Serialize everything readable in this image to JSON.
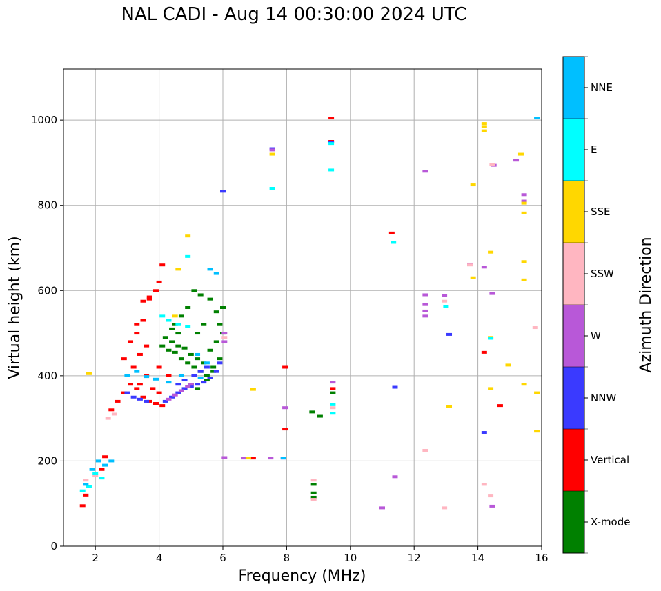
{
  "title": "NAL CADI - Aug 14 00:30:00 2024 UTC",
  "chart_data": {
    "type": "scatter",
    "title": "NAL CADI - Aug 14 00:30:00 2024 UTC",
    "xlabel": "Frequency (MHz)",
    "ylabel": "Virtual height (km)",
    "xlim": [
      1,
      16
    ],
    "ylim": [
      0,
      1120
    ],
    "xticks": [
      2,
      4,
      6,
      8,
      10,
      12,
      14,
      16
    ],
    "yticks": [
      0,
      200,
      400,
      600,
      800,
      1000
    ],
    "grid": true,
    "colorbar": {
      "label": "Azimuth Direction",
      "categories": [
        "X-mode",
        "Vertical",
        "NNW",
        "W",
        "SSW",
        "SSE",
        "E",
        "NNE"
      ],
      "colors": [
        "#008000",
        "#ff0000",
        "#3a3aff",
        "#b858d8",
        "#ffb6c1",
        "#ffd700",
        "#00ffff",
        "#00bfff"
      ]
    },
    "series": [
      {
        "name": "X-mode",
        "points": [
          [
            4.1,
            470
          ],
          [
            4.3,
            460
          ],
          [
            4.5,
            455
          ],
          [
            4.7,
            440
          ],
          [
            4.9,
            430
          ],
          [
            5.1,
            420
          ],
          [
            5.3,
            410
          ],
          [
            5.5,
            400
          ],
          [
            5.7,
            420
          ],
          [
            5.9,
            440
          ],
          [
            4.2,
            490
          ],
          [
            4.4,
            480
          ],
          [
            4.6,
            470
          ],
          [
            4.8,
            465
          ],
          [
            5.0,
            450
          ],
          [
            5.2,
            440
          ],
          [
            5.4,
            430
          ],
          [
            5.6,
            460
          ],
          [
            5.8,
            480
          ],
          [
            6.0,
            500
          ],
          [
            5.0,
            380
          ],
          [
            5.2,
            370
          ],
          [
            5.5,
            390
          ],
          [
            5.7,
            410
          ],
          [
            5.9,
            520
          ],
          [
            6.0,
            560
          ],
          [
            5.8,
            550
          ],
          [
            5.6,
            580
          ],
          [
            5.3,
            590
          ],
          [
            5.1,
            600
          ],
          [
            4.9,
            560
          ],
          [
            4.7,
            540
          ],
          [
            4.5,
            520
          ],
          [
            5.4,
            520
          ],
          [
            5.2,
            500
          ],
          [
            4.6,
            500
          ],
          [
            4.4,
            510
          ],
          [
            8.85,
            145
          ],
          [
            8.85,
            125
          ],
          [
            8.85,
            115
          ],
          [
            8.8,
            315
          ],
          [
            9.05,
            305
          ],
          [
            9.45,
            360
          ]
        ]
      },
      {
        "name": "Vertical",
        "points": [
          [
            1.6,
            95
          ],
          [
            1.7,
            120
          ],
          [
            2.2,
            180
          ],
          [
            2.3,
            210
          ],
          [
            2.5,
            320
          ],
          [
            2.7,
            340
          ],
          [
            2.9,
            360
          ],
          [
            3.1,
            380
          ],
          [
            3.3,
            370
          ],
          [
            3.5,
            350
          ],
          [
            3.7,
            340
          ],
          [
            3.9,
            335
          ],
          [
            4.1,
            330
          ],
          [
            3.2,
            420
          ],
          [
            3.4,
            450
          ],
          [
            3.6,
            470
          ],
          [
            3.3,
            500
          ],
          [
            3.5,
            530
          ],
          [
            3.7,
            580
          ],
          [
            3.9,
            600
          ],
          [
            4.0,
            620
          ],
          [
            4.1,
            660
          ],
          [
            3.7,
            585
          ],
          [
            3.5,
            575
          ],
          [
            3.3,
            520
          ],
          [
            3.1,
            480
          ],
          [
            2.9,
            440
          ],
          [
            3.8,
            370
          ],
          [
            4.0,
            360
          ],
          [
            4.3,
            400
          ],
          [
            4.0,
            420
          ],
          [
            3.6,
            400
          ],
          [
            3.4,
            380
          ],
          [
            9.4,
            1005
          ],
          [
            9.4,
            950
          ],
          [
            9.45,
            370
          ],
          [
            7.95,
            420
          ],
          [
            7.95,
            275
          ],
          [
            6.95,
            207
          ],
          [
            11.3,
            735
          ],
          [
            14.2,
            455
          ],
          [
            14.7,
            330
          ]
        ]
      },
      {
        "name": "NNW",
        "points": [
          [
            4.2,
            340
          ],
          [
            4.4,
            350
          ],
          [
            4.6,
            360
          ],
          [
            4.8,
            370
          ],
          [
            5.0,
            375
          ],
          [
            5.2,
            380
          ],
          [
            5.4,
            385
          ],
          [
            5.6,
            395
          ],
          [
            5.8,
            410
          ],
          [
            5.9,
            430
          ],
          [
            4.6,
            380
          ],
          [
            4.8,
            390
          ],
          [
            5.1,
            400
          ],
          [
            5.3,
            410
          ],
          [
            5.5,
            420
          ],
          [
            6.0,
            833
          ],
          [
            7.55,
            933
          ],
          [
            9.4,
            948
          ],
          [
            11.4,
            373
          ],
          [
            13.1,
            497
          ],
          [
            14.2,
            267
          ],
          [
            7.9,
            207
          ],
          [
            3.2,
            350
          ],
          [
            3.4,
            345
          ],
          [
            3.6,
            340
          ],
          [
            3.0,
            360
          ]
        ]
      },
      {
        "name": "W",
        "points": [
          [
            4.3,
            345
          ],
          [
            4.5,
            355
          ],
          [
            4.7,
            365
          ],
          [
            4.9,
            375
          ],
          [
            5.0,
            380
          ],
          [
            6.05,
            480
          ],
          [
            6.05,
            500
          ],
          [
            7.55,
            930
          ],
          [
            6.05,
            208
          ],
          [
            6.65,
            207
          ],
          [
            7.5,
            207
          ],
          [
            7.95,
            325
          ],
          [
            9.45,
            385
          ],
          [
            11.0,
            90
          ],
          [
            11.4,
            163
          ],
          [
            12.35,
            590
          ],
          [
            12.35,
            567
          ],
          [
            12.35,
            552
          ],
          [
            12.35,
            540
          ],
          [
            12.35,
            880
          ],
          [
            12.95,
            588
          ],
          [
            13.75,
            662
          ],
          [
            14.2,
            655
          ],
          [
            14.45,
            593
          ],
          [
            14.45,
            94
          ],
          [
            14.5,
            894
          ],
          [
            15.2,
            906
          ],
          [
            15.45,
            825
          ],
          [
            15.45,
            810
          ]
        ]
      },
      {
        "name": "SSW",
        "points": [
          [
            1.7,
            155
          ],
          [
            2.0,
            165
          ],
          [
            2.4,
            300
          ],
          [
            2.6,
            310
          ],
          [
            6.05,
            490
          ],
          [
            8.85,
            155
          ],
          [
            8.85,
            110
          ],
          [
            9.45,
            325
          ],
          [
            12.35,
            225
          ],
          [
            12.95,
            575
          ],
          [
            12.95,
            90
          ],
          [
            13.75,
            660
          ],
          [
            14.2,
            145
          ],
          [
            14.4,
            118
          ],
          [
            14.45,
            895
          ],
          [
            15.8,
            513
          ]
        ]
      },
      {
        "name": "SSE",
        "points": [
          [
            1.8,
            405
          ],
          [
            4.9,
            728
          ],
          [
            4.6,
            650
          ],
          [
            4.5,
            540
          ],
          [
            6.8,
            207
          ],
          [
            6.95,
            368
          ],
          [
            7.55,
            920
          ],
          [
            13.1,
            327
          ],
          [
            13.85,
            848
          ],
          [
            13.85,
            630
          ],
          [
            14.2,
            992
          ],
          [
            14.2,
            985
          ],
          [
            14.2,
            975
          ],
          [
            14.4,
            690
          ],
          [
            14.4,
            370
          ],
          [
            14.4,
            490
          ],
          [
            14.95,
            425
          ],
          [
            15.35,
            920
          ],
          [
            15.45,
            805
          ],
          [
            15.45,
            782
          ],
          [
            15.45,
            668
          ],
          [
            15.45,
            625
          ],
          [
            15.45,
            380
          ],
          [
            15.85,
            360
          ],
          [
            15.85,
            270
          ]
        ]
      },
      {
        "name": "E",
        "points": [
          [
            1.6,
            130
          ],
          [
            1.8,
            140
          ],
          [
            2.0,
            170
          ],
          [
            2.2,
            160
          ],
          [
            4.1,
            540
          ],
          [
            4.3,
            530
          ],
          [
            4.6,
            520
          ],
          [
            4.9,
            515
          ],
          [
            4.9,
            680
          ],
          [
            7.55,
            840
          ],
          [
            9.4,
            945
          ],
          [
            9.4,
            883
          ],
          [
            9.45,
            332
          ],
          [
            9.45,
            312
          ],
          [
            11.35,
            713
          ],
          [
            13.0,
            563
          ],
          [
            14.4,
            488
          ]
        ]
      },
      {
        "name": "NNE",
        "points": [
          [
            1.7,
            145
          ],
          [
            1.9,
            180
          ],
          [
            2.1,
            200
          ],
          [
            2.3,
            190
          ],
          [
            2.5,
            200
          ],
          [
            3.0,
            400
          ],
          [
            3.3,
            410
          ],
          [
            3.6,
            398
          ],
          [
            3.9,
            392
          ],
          [
            4.3,
            385
          ],
          [
            4.7,
            400
          ],
          [
            5.3,
            395
          ],
          [
            5.8,
            640
          ],
          [
            5.6,
            650
          ],
          [
            5.5,
            430
          ],
          [
            5.2,
            450
          ],
          [
            7.9,
            207
          ],
          [
            15.85,
            1005
          ]
        ]
      }
    ]
  }
}
